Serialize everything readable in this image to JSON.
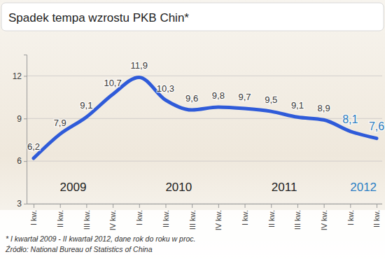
{
  "chart_data": {
    "type": "line",
    "title": "Spadek tempa wzrostu PKB Chin*",
    "categories": [
      "I kw.",
      "II kw.",
      "III kw.",
      "IV kw.",
      "I kw.",
      "II kw.",
      "III kw.",
      "IV kw.",
      "I kw.",
      "II kw.",
      "III kw.",
      "IV kw.",
      "I kw.",
      "II kw."
    ],
    "year_labels": [
      "2009",
      "2010",
      "2011",
      "2012"
    ],
    "values": [
      6.2,
      7.9,
      9.1,
      10.7,
      11.9,
      10.3,
      9.6,
      9.8,
      9.7,
      9.5,
      9.1,
      8.9,
      8.1,
      7.6
    ],
    "value_labels": [
      "6,2",
      "7,9",
      "9,1",
      "10,7",
      "11,9",
      "10,3",
      "9,6",
      "9,8",
      "9,7",
      "9,5",
      "9,1",
      "8,9",
      "8,1",
      "7,6"
    ],
    "color": "#2f5bd9",
    "ylim": [
      3,
      13.5
    ],
    "yticks": [
      3,
      6,
      9,
      12
    ],
    "grid": true,
    "data_labels": true,
    "notes": [
      "* I kwartał 2009 - II kwartał 2012, dane rok do roku w proc.",
      "Źródło: National Bureau of Statistics of China"
    ]
  }
}
